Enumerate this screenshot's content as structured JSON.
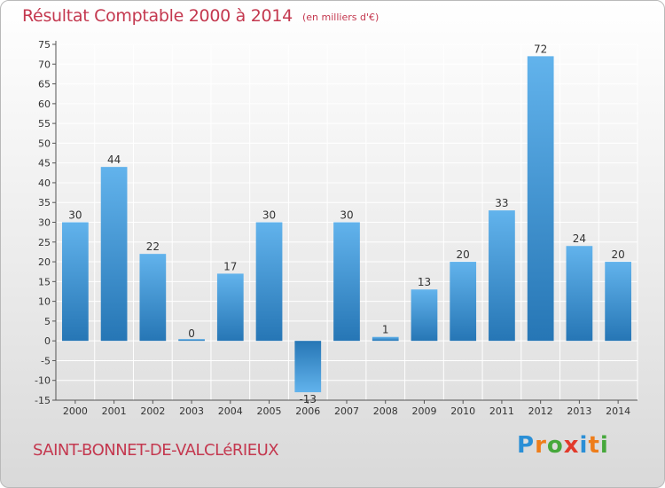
{
  "header": {
    "title": "Résultat Comptable 2000 à 2014",
    "subtitle": "(en milliers d'€)"
  },
  "footer": {
    "commune": "SAINT-BONNET-DE-VALCLéRIEUX",
    "logo": [
      "P",
      "r",
      "o",
      "x",
      "i",
      "t",
      "i"
    ],
    "logo_colors": [
      "#2a8fd6",
      "#ee7d1a",
      "#46a83b",
      "#e23a2b",
      "#2a8fd6",
      "#ee7d1a",
      "#46a83b"
    ]
  },
  "colors": {
    "bar_light": "#62b3ec",
    "bar_dark": "#2676b5",
    "grid": "#ffffff",
    "axis": "#555555",
    "text": "#333333"
  },
  "chart_data": {
    "type": "bar",
    "title": "Résultat Comptable 2000 à 2014",
    "subtitle": "(en milliers d'€)",
    "xlabel": "",
    "ylabel": "",
    "ylim": [
      -15,
      75
    ],
    "ytick_step": 5,
    "grid": true,
    "categories": [
      "2000",
      "2001",
      "2002",
      "2003",
      "2004",
      "2005",
      "2006",
      "2007",
      "2008",
      "2009",
      "2010",
      "2011",
      "2012",
      "2013",
      "2014"
    ],
    "values": [
      30,
      44,
      22,
      0,
      17,
      30,
      -13,
      30,
      1,
      13,
      20,
      33,
      72,
      24,
      20
    ]
  }
}
